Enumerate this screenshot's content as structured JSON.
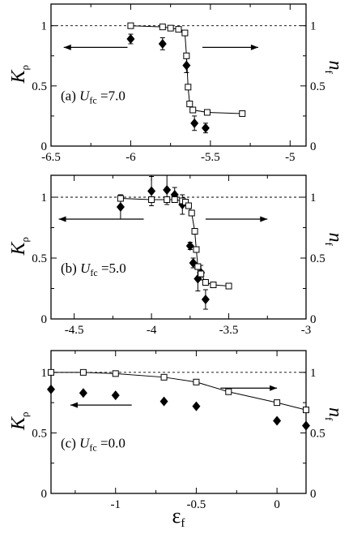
{
  "chart_data": [
    {
      "type": "scatter",
      "panel_label": "(a) U_fc=7.0",
      "panel_label_parts": {
        "prefix": "(a) ",
        "var": "U",
        "sub": "fc",
        "suffix": "=7.0"
      },
      "ylabel_left": {
        "main": "K",
        "sub": "ρ"
      },
      "ylabel_right": "n_f",
      "xlim": [
        -6.5,
        -4.9
      ],
      "xticks": [
        -6.5,
        -6,
        -5.5,
        -5
      ],
      "xtick_labels": [
        "-6.5",
        "-6",
        "-5.5",
        "-5"
      ],
      "ylim": [
        0,
        1.18
      ],
      "yticks": [
        0,
        0.5,
        1
      ],
      "ytick_labels": [
        "0",
        "0.5",
        "1"
      ],
      "right_ytick_labels": [
        "0",
        "0.5",
        "1"
      ],
      "reference_line": 1,
      "series": [
        {
          "marker": "filled-diamond",
          "x": [
            -6.0,
            -5.8,
            -5.65,
            -5.6,
            -5.53
          ],
          "y": [
            0.89,
            0.85,
            0.67,
            0.19,
            0.15
          ],
          "err": [
            0.04,
            0.05,
            0.06,
            0.06,
            0.04
          ]
        },
        {
          "marker": "open-square",
          "line": true,
          "x": [
            -6.0,
            -5.8,
            -5.75,
            -5.7,
            -5.66,
            -5.65,
            -5.64,
            -5.63,
            -5.61,
            -5.52,
            -5.3
          ],
          "y": [
            1.0,
            0.99,
            0.98,
            0.97,
            0.94,
            0.75,
            0.49,
            0.35,
            0.3,
            0.28,
            0.27
          ]
        }
      ],
      "arrows": [
        {
          "direction": "left",
          "x_from": -6.02,
          "x_to": -6.42,
          "y": 0.82
        },
        {
          "direction": "right",
          "x_from": -5.55,
          "x_to": -5.2,
          "y": 0.82
        }
      ]
    },
    {
      "type": "scatter",
      "panel_label": "(b) U_fc=5.0",
      "panel_label_parts": {
        "prefix": "(b) ",
        "var": "U",
        "sub": "fc",
        "suffix": "=5.0"
      },
      "ylabel_left": {
        "main": "K",
        "sub": "ρ"
      },
      "ylabel_right": "n_f",
      "xlim": [
        -4.65,
        -3.0
      ],
      "xticks": [
        -4.5,
        -4,
        -3.5,
        -3
      ],
      "xtick_labels": [
        "-4.5",
        "-4",
        "-3.5",
        "-3"
      ],
      "ylim": [
        0,
        1.18
      ],
      "yticks": [
        0,
        0.5,
        1
      ],
      "ytick_labels": [
        "0",
        "0.5",
        "1"
      ],
      "right_ytick_labels": [
        "0",
        "0.5",
        "1"
      ],
      "reference_line": 1,
      "series": [
        {
          "marker": "filled-diamond",
          "x": [
            -4.2,
            -4.0,
            -3.9,
            -3.85,
            -3.8,
            -3.75,
            -3.73,
            -3.7,
            -3.68,
            -3.65
          ],
          "y": [
            0.92,
            1.05,
            1.06,
            1.02,
            0.94,
            0.6,
            0.46,
            0.33,
            0.38,
            0.16
          ],
          "err": [
            0.1,
            0.12,
            0.12,
            0.06,
            0.08,
            0.03,
            0.04,
            0.1,
            0.06,
            0.08
          ]
        },
        {
          "marker": "open-square",
          "line": true,
          "x": [
            -4.2,
            -4.0,
            -3.9,
            -3.85,
            -3.8,
            -3.78,
            -3.76,
            -3.74,
            -3.72,
            -3.71,
            -3.7,
            -3.68,
            -3.65,
            -3.6,
            -3.5
          ],
          "y": [
            0.99,
            0.98,
            0.98,
            0.98,
            0.97,
            0.96,
            0.93,
            0.87,
            0.72,
            0.57,
            0.43,
            0.37,
            0.3,
            0.28,
            0.27
          ]
        }
      ],
      "arrows": [
        {
          "direction": "left",
          "x_from": -4.05,
          "x_to": -4.6,
          "y": 0.82
        },
        {
          "direction": "right",
          "x_from": -3.65,
          "x_to": -3.25,
          "y": 0.82
        }
      ]
    },
    {
      "type": "scatter",
      "panel_label": "(c) U_fc=0.0",
      "panel_label_parts": {
        "prefix": "(c) ",
        "var": "U",
        "sub": "fc",
        "suffix": "=0.0"
      },
      "ylabel_left": {
        "main": "K",
        "sub": "ρ"
      },
      "ylabel_right": "n_f",
      "xlabel": {
        "main": "ε",
        "sub": "f"
      },
      "xlim": [
        -1.4,
        0.18
      ],
      "xticks": [
        -1,
        -0.5,
        0
      ],
      "xtick_labels": [
        "-1",
        "-0.5",
        "0"
      ],
      "ylim": [
        0,
        1.18
      ],
      "yticks": [
        0,
        0.5,
        1
      ],
      "ytick_labels": [
        "0",
        "0.5",
        "1"
      ],
      "right_ytick_labels": [
        "0",
        "0.5",
        "1"
      ],
      "reference_line": 1,
      "series": [
        {
          "marker": "filled-diamond",
          "x": [
            -1.4,
            -1.2,
            -1.0,
            -0.7,
            -0.5,
            0.0,
            0.18
          ],
          "y": [
            0.86,
            0.83,
            0.81,
            0.76,
            0.72,
            0.6,
            0.56
          ],
          "err": [
            0,
            0,
            0,
            0,
            0,
            0,
            0
          ]
        },
        {
          "marker": "open-square",
          "line": true,
          "x": [
            -1.4,
            -1.2,
            -1.0,
            -0.7,
            -0.5,
            -0.3,
            0.0,
            0.18
          ],
          "y": [
            1.0,
            1.0,
            0.99,
            0.96,
            0.92,
            0.84,
            0.75,
            0.69
          ]
        }
      ],
      "arrows": [
        {
          "direction": "left",
          "x_from": -0.9,
          "x_to": -1.28,
          "y": 0.73
        },
        {
          "direction": "right",
          "x_from": -0.35,
          "x_to": 0.0,
          "y": 0.87
        }
      ]
    }
  ]
}
